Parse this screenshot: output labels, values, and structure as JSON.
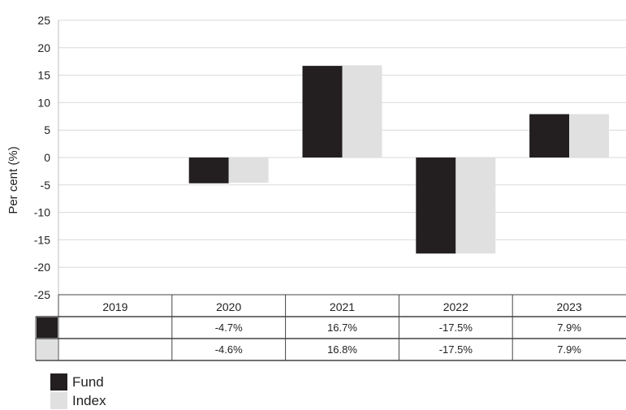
{
  "chart_data": {
    "type": "bar",
    "ylabel": "Per cent (%)",
    "ylim": [
      -25,
      25
    ],
    "yticks": [
      25,
      20,
      15,
      10,
      5,
      0,
      -5,
      -10,
      -15,
      -20,
      -25
    ],
    "grid": true,
    "legend_position": "bottom-left",
    "categories": [
      "2019",
      "2020",
      "2021",
      "2022",
      "2023"
    ],
    "series": [
      {
        "name": "Fund",
        "color": "#231f20",
        "values": [
          null,
          -4.7,
          16.7,
          -17.5,
          7.9
        ],
        "labels": [
          "",
          "-4.7%",
          "16.7%",
          "-17.5%",
          "7.9%"
        ]
      },
      {
        "name": "Index",
        "color": "#e0e0e0",
        "values": [
          null,
          -4.6,
          16.8,
          -17.5,
          7.9
        ],
        "labels": [
          "",
          "-4.6%",
          "16.8%",
          "-17.5%",
          "7.9%"
        ]
      }
    ]
  }
}
